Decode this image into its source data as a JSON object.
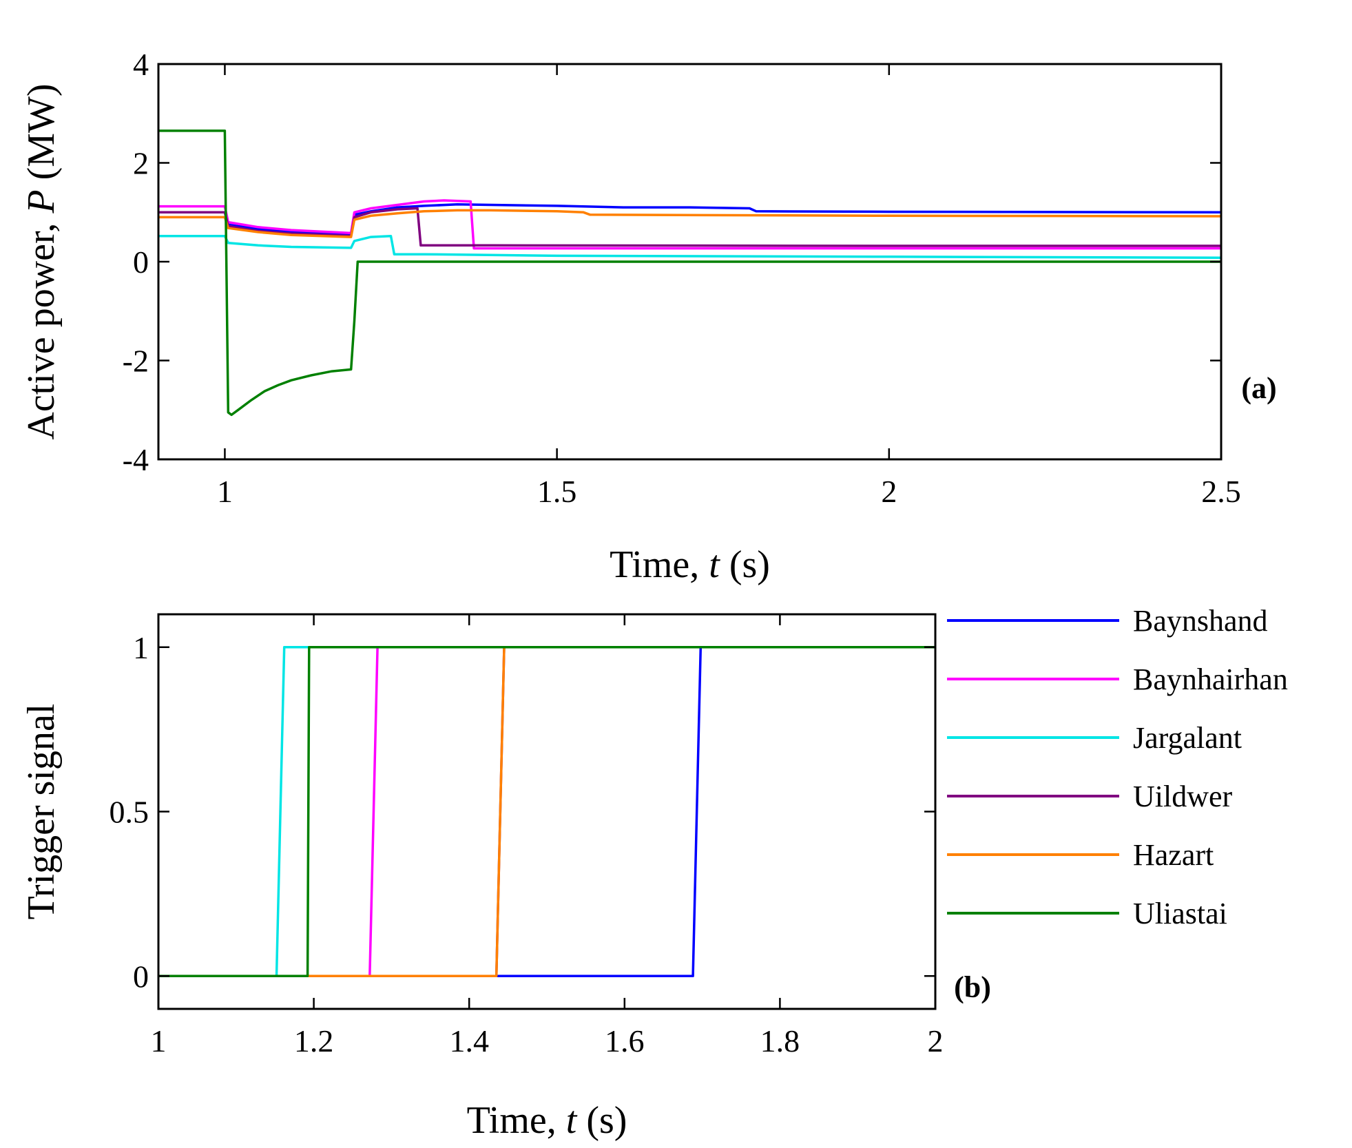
{
  "chart_data": [
    {
      "id": "a",
      "type": "line",
      "panel_label": "(a)",
      "xlabel": {
        "prefix": "Time, ",
        "var": "t",
        "suffix": " (s)"
      },
      "ylabel": {
        "prefix": "Active power, ",
        "var": "P",
        "suffix": " (MW)"
      },
      "xlim": [
        0.9,
        2.5
      ],
      "ylim": [
        -4,
        4
      ],
      "xticks": [
        1,
        1.5,
        2,
        2.5
      ],
      "xtick_labels": [
        "1",
        "1.5",
        "2",
        "2.5"
      ],
      "yticks": [
        -4,
        -2,
        0,
        2,
        4
      ],
      "ytick_labels": [
        "-4",
        "-2",
        "0",
        "2",
        "4"
      ],
      "grid": false,
      "series": [
        {
          "name": "Baynshand",
          "color": "#0000ff",
          "points": [
            [
              0.9,
              1.0
            ],
            [
              1.0,
              1.0
            ],
            [
              1.005,
              0.75
            ],
            [
              1.05,
              0.66
            ],
            [
              1.1,
              0.6
            ],
            [
              1.19,
              0.55
            ],
            [
              1.195,
              0.95
            ],
            [
              1.22,
              1.02
            ],
            [
              1.26,
              1.1
            ],
            [
              1.3,
              1.13
            ],
            [
              1.35,
              1.16
            ],
            [
              1.4,
              1.15
            ],
            [
              1.5,
              1.13
            ],
            [
              1.6,
              1.1
            ],
            [
              1.7,
              1.1
            ],
            [
              1.79,
              1.08
            ],
            [
              1.8,
              1.02
            ],
            [
              2.0,
              1.01
            ],
            [
              2.5,
              1.0
            ]
          ]
        },
        {
          "name": "Baynhairhan",
          "color": "#ff00ff",
          "points": [
            [
              0.9,
              1.12
            ],
            [
              1.0,
              1.12
            ],
            [
              1.005,
              0.8
            ],
            [
              1.05,
              0.7
            ],
            [
              1.1,
              0.64
            ],
            [
              1.19,
              0.58
            ],
            [
              1.195,
              1.0
            ],
            [
              1.22,
              1.08
            ],
            [
              1.26,
              1.15
            ],
            [
              1.3,
              1.22
            ],
            [
              1.33,
              1.24
            ],
            [
              1.37,
              1.22
            ],
            [
              1.375,
              0.27
            ],
            [
              1.5,
              0.27
            ],
            [
              2.0,
              0.27
            ],
            [
              2.5,
              0.27
            ]
          ]
        },
        {
          "name": "Jargalant",
          "color": "#00e5e5",
          "points": [
            [
              0.9,
              0.52
            ],
            [
              1.0,
              0.52
            ],
            [
              1.005,
              0.38
            ],
            [
              1.05,
              0.33
            ],
            [
              1.1,
              0.3
            ],
            [
              1.19,
              0.28
            ],
            [
              1.195,
              0.42
            ],
            [
              1.22,
              0.5
            ],
            [
              1.25,
              0.52
            ],
            [
              1.255,
              0.15
            ],
            [
              1.3,
              0.15
            ],
            [
              1.5,
              0.12
            ],
            [
              2.0,
              0.1
            ],
            [
              2.5,
              0.08
            ]
          ]
        },
        {
          "name": "Uildwer",
          "color": "#800080",
          "points": [
            [
              0.9,
              1.0
            ],
            [
              1.0,
              1.0
            ],
            [
              1.005,
              0.72
            ],
            [
              1.05,
              0.62
            ],
            [
              1.1,
              0.57
            ],
            [
              1.19,
              0.52
            ],
            [
              1.195,
              0.9
            ],
            [
              1.22,
              1.0
            ],
            [
              1.26,
              1.06
            ],
            [
              1.29,
              1.08
            ],
            [
              1.295,
              0.33
            ],
            [
              1.4,
              0.33
            ],
            [
              2.0,
              0.32
            ],
            [
              2.5,
              0.32
            ]
          ]
        },
        {
          "name": "Hazart",
          "color": "#ff8000",
          "points": [
            [
              0.9,
              0.9
            ],
            [
              1.0,
              0.9
            ],
            [
              1.005,
              0.68
            ],
            [
              1.05,
              0.6
            ],
            [
              1.1,
              0.54
            ],
            [
              1.19,
              0.5
            ],
            [
              1.195,
              0.85
            ],
            [
              1.22,
              0.93
            ],
            [
              1.26,
              0.98
            ],
            [
              1.3,
              1.02
            ],
            [
              1.35,
              1.04
            ],
            [
              1.4,
              1.04
            ],
            [
              1.5,
              1.02
            ],
            [
              1.54,
              1.0
            ],
            [
              1.55,
              0.95
            ],
            [
              2.0,
              0.93
            ],
            [
              2.5,
              0.92
            ]
          ]
        },
        {
          "name": "Uliastai",
          "color": "#008000",
          "points": [
            [
              0.9,
              2.65
            ],
            [
              1.0,
              2.65
            ],
            [
              1.005,
              -3.05
            ],
            [
              1.01,
              -3.1
            ],
            [
              1.02,
              -3.0
            ],
            [
              1.04,
              -2.8
            ],
            [
              1.06,
              -2.62
            ],
            [
              1.08,
              -2.5
            ],
            [
              1.1,
              -2.4
            ],
            [
              1.13,
              -2.3
            ],
            [
              1.16,
              -2.22
            ],
            [
              1.19,
              -2.18
            ],
            [
              1.195,
              -1.2
            ],
            [
              1.2,
              0.0
            ],
            [
              1.3,
              0.0
            ],
            [
              2.5,
              0.0
            ]
          ]
        }
      ]
    },
    {
      "id": "b",
      "type": "line",
      "panel_label": "(b)",
      "xlabel": {
        "prefix": "Time, ",
        "var": "t",
        "suffix": " (s)"
      },
      "ylabel": {
        "text": "Trigger signal"
      },
      "xlim": [
        1,
        2
      ],
      "ylim": [
        -0.1,
        1.1
      ],
      "xticks": [
        1,
        1.2,
        1.4,
        1.6,
        1.8,
        2
      ],
      "xtick_labels": [
        "1",
        "1.2",
        "1.4",
        "1.6",
        "1.8",
        "2"
      ],
      "yticks": [
        0,
        0.5,
        1
      ],
      "ytick_labels": [
        "0",
        "0.5",
        "1"
      ],
      "grid": false,
      "legend": {
        "placement": "right",
        "entries": [
          "Baynshand",
          "Baynhairhan",
          "Jargalant",
          "Uildwer",
          "Hazart",
          "Uliastai"
        ]
      },
      "series": [
        {
          "name": "Baynshand",
          "color": "#0000ff",
          "points": [
            [
              1,
              0
            ],
            [
              1.688,
              0
            ],
            [
              1.698,
              1
            ],
            [
              2,
              1
            ]
          ]
        },
        {
          "name": "Baynhairhan",
          "color": "#ff00ff",
          "points": [
            [
              1,
              0
            ],
            [
              1.272,
              0
            ],
            [
              1.282,
              1
            ],
            [
              2,
              1
            ]
          ]
        },
        {
          "name": "Jargalant",
          "color": "#00e5e5",
          "points": [
            [
              1,
              0
            ],
            [
              1.152,
              0
            ],
            [
              1.162,
              1
            ],
            [
              2,
              1
            ]
          ]
        },
        {
          "name": "Uildwer",
          "color": "#800080",
          "points": [
            [
              1,
              0
            ],
            [
              1.435,
              0
            ],
            [
              1.445,
              1
            ],
            [
              2,
              1
            ]
          ]
        },
        {
          "name": "Hazart",
          "color": "#ff8000",
          "points": [
            [
              1,
              0
            ],
            [
              1.435,
              0
            ],
            [
              1.445,
              1
            ],
            [
              2,
              1
            ]
          ]
        },
        {
          "name": "Uliastai",
          "color": "#008000",
          "points": [
            [
              1,
              0
            ],
            [
              1.192,
              0
            ],
            [
              1.194,
              1
            ],
            [
              2,
              1
            ]
          ]
        }
      ]
    }
  ]
}
